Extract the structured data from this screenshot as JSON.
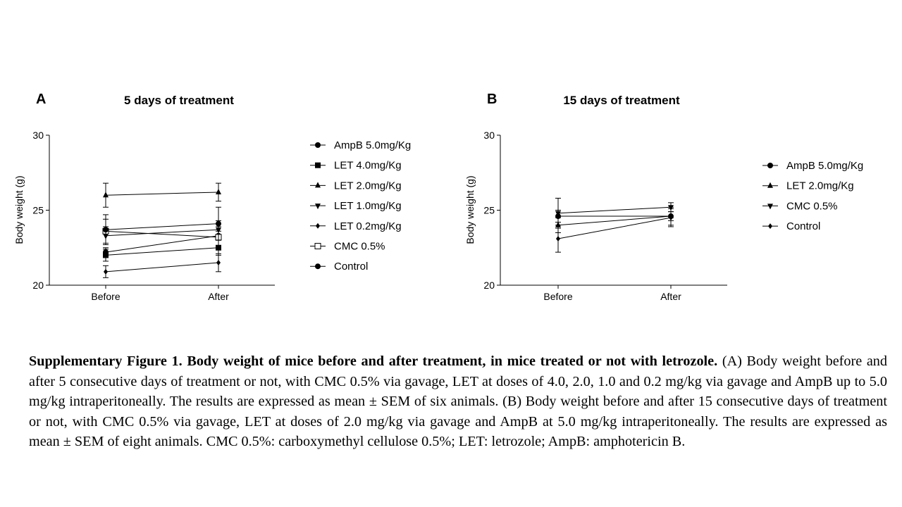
{
  "chart_data": [
    {
      "type": "line",
      "panel_label": "A",
      "title": "5 days of treatment",
      "xlabel": "",
      "ylabel": "Body weight (g)",
      "categories": [
        "Before",
        "After"
      ],
      "ylim": [
        20,
        30
      ],
      "yticks": [
        20,
        25,
        30
      ],
      "grid": false,
      "legend": "right",
      "error_bars": "SEM",
      "series": [
        {
          "name": "AmpB 5.0mg/Kg",
          "marker": "circle",
          "values": [
            22.2,
            23.3
          ],
          "err": [
            0.3,
            0.3
          ]
        },
        {
          "name": "LET 4.0mg/Kg",
          "marker": "square",
          "values": [
            22.0,
            22.5
          ],
          "err": [
            0.4,
            0.5
          ]
        },
        {
          "name": "LET 2.0mg/Kg",
          "marker": "triangle-up",
          "values": [
            26.0,
            26.2
          ],
          "err": [
            0.8,
            0.6
          ]
        },
        {
          "name": "LET 1.0mg/Kg",
          "marker": "triangle-down",
          "values": [
            23.3,
            23.7
          ],
          "err": [
            0.6,
            0.6
          ]
        },
        {
          "name": "LET 0.2mg/Kg",
          "marker": "diamond",
          "values": [
            20.9,
            21.5
          ],
          "err": [
            0.4,
            0.6
          ]
        },
        {
          "name": "CMC 0.5%",
          "marker": "open-square",
          "values": [
            23.6,
            23.2
          ],
          "err": [
            0.8,
            0.7
          ]
        },
        {
          "name": "Control",
          "marker": "circle",
          "values": [
            23.7,
            24.1
          ],
          "err": [
            1.0,
            1.1
          ]
        }
      ]
    },
    {
      "type": "line",
      "panel_label": "B",
      "title": "15 days of treatment",
      "xlabel": "",
      "ylabel": "Body weight (g)",
      "categories": [
        "Before",
        "After"
      ],
      "ylim": [
        20,
        30
      ],
      "yticks": [
        20,
        25,
        30
      ],
      "grid": false,
      "legend": "right",
      "error_bars": "SEM",
      "series": [
        {
          "name": "AmpB 5.0mg/Kg",
          "marker": "circle",
          "values": [
            24.6,
            24.6
          ],
          "err": [
            0.4,
            0.3
          ]
        },
        {
          "name": "LET 2.0mg/Kg",
          "marker": "triangle-up",
          "values": [
            24.0,
            24.6
          ],
          "err": [
            0.5,
            0.6
          ]
        },
        {
          "name": " CMC 0.5%",
          "marker": "triangle-down",
          "values": [
            24.8,
            25.2
          ],
          "err": [
            1.0,
            0.3
          ]
        },
        {
          "name": "Control",
          "marker": "diamond",
          "values": [
            23.1,
            24.5
          ],
          "err": [
            0.9,
            0.6
          ]
        }
      ]
    }
  ],
  "caption": {
    "bold": "Supplementary Figure 1. Body weight of mice before and after treatment, in mice treated or not with letrozole.",
    "text": " (A) Body weight before and after 5 consecutive days of treatment or not, with CMC 0.5% via gavage, LET at doses of 4.0, 2.0, 1.0 and 0.2 mg/kg via gavage and AmpB up to 5.0 mg/kg intraperitoneally. The results are expressed as mean ± SEM of six animals. (B) Body weight before and after 15 consecutive days of treatment or not, with CMC 0.5% via gavage, LET at doses of 2.0 mg/kg via gavage and AmpB at 5.0 mg/kg intraperitoneally. The results are expressed as mean ± SEM of eight animals. CMC 0.5%: carboxymethyl cellulose 0.5%; LET: letrozole; AmpB: amphotericin B."
  }
}
